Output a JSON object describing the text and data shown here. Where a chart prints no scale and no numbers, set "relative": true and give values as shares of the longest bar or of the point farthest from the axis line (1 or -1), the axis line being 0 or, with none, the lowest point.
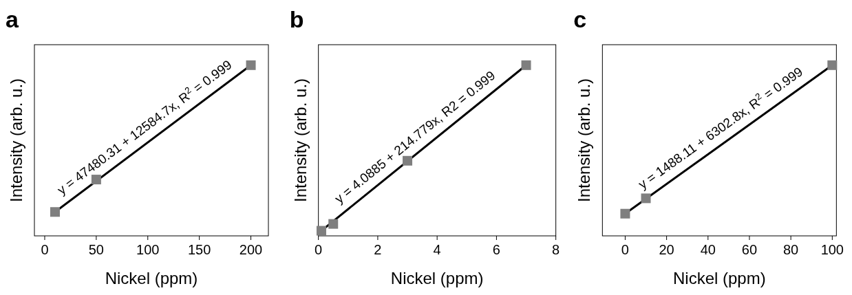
{
  "chart_data": [
    {
      "type": "scatter",
      "title": "a",
      "xlabel": "Nickel (ppm)",
      "ylabel": "Intensity (arb. u.)",
      "relative": true,
      "xlim": [
        -10,
        217
      ],
      "xticks": [
        0,
        50,
        100,
        150,
        200
      ],
      "marker": "square",
      "annotations": [
        "y = 47480.31 + 12584.7x, R$^{2}$ = 0.999"
      ],
      "series": [
        {
          "color": "#7f7f7f",
          "x": [
            10,
            50,
            200
          ],
          "values": [
            0.14,
            0.33,
            1
          ]
        },
        {
          "type": "line",
          "marker": "none",
          "color": "#000000",
          "x": [
            10,
            200
          ],
          "values": [
            0.14,
            1
          ]
        }
      ]
    },
    {
      "type": "scatter",
      "title": "b",
      "xlabel": "Nickel (ppm)",
      "ylabel": "Intensity (arb. u.)",
      "relative": true,
      "xlim": [
        0,
        8
      ],
      "xticks": [
        0,
        2,
        4,
        6,
        8
      ],
      "marker": "square",
      "annotations": [
        "y = 4.0885 + 214.779x, R2 = 0.999"
      ],
      "series": [
        {
          "color": "#7f7f7f",
          "x": [
            0.1,
            0.5,
            3,
            7
          ],
          "values": [
            0.03,
            0.07,
            0.44,
            1
          ]
        },
        {
          "type": "line",
          "marker": "none",
          "color": "#000000",
          "x": [
            0.1,
            7
          ],
          "values": [
            0.03,
            1
          ]
        }
      ]
    },
    {
      "type": "scatter",
      "title": "c",
      "xlabel": "Nickel (ppm)",
      "ylabel": "Intensity (arb. u.)",
      "relative": true,
      "xlim": [
        -11,
        102
      ],
      "xticks": [
        0,
        20,
        40,
        60,
        80,
        100
      ],
      "marker": "square",
      "annotations": [
        "y = 1488.11 + 6302.8x, R$^{2}$ = 0.999"
      ],
      "series": [
        {
          "color": "#7f7f7f",
          "x": [
            0,
            10,
            100
          ],
          "values": [
            0.13,
            0.22,
            1
          ]
        },
        {
          "type": "line",
          "marker": "none",
          "color": "#000000",
          "x": [
            0,
            100
          ],
          "values": [
            0.13,
            1
          ]
        }
      ]
    }
  ]
}
